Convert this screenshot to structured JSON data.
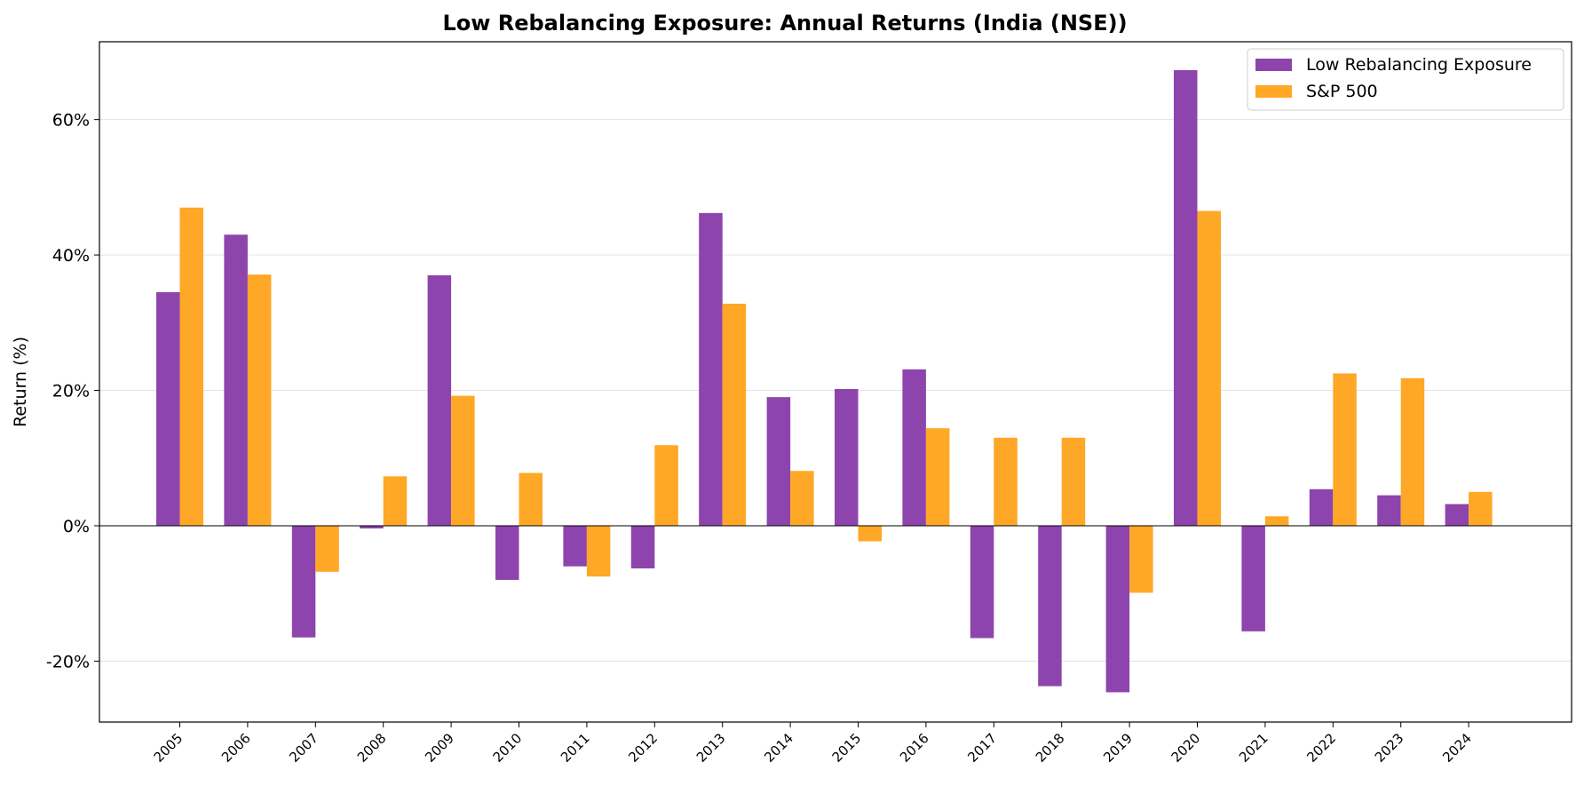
{
  "chart_data": {
    "type": "bar",
    "title": "Low Rebalancing Exposure: Annual Returns (India (NSE))",
    "xlabel": "",
    "ylabel": "Return (%)",
    "ylim": [
      -29,
      71.5
    ],
    "yticks": [
      -20,
      0,
      20,
      40,
      60
    ],
    "ytick_labels": [
      "-20%",
      "0%",
      "20%",
      "40%",
      "60%"
    ],
    "grid": true,
    "legend_position": "top-right",
    "categories": [
      "2005",
      "2006",
      "2007",
      "2008",
      "2009",
      "2010",
      "2011",
      "2012",
      "2013",
      "2014",
      "2015",
      "2016",
      "2017",
      "2018",
      "2019",
      "2020",
      "2021",
      "2022",
      "2023",
      "2024"
    ],
    "series": [
      {
        "name": "Low Rebalancing Exposure",
        "color": "#8e44ad",
        "values": [
          34.5,
          43.0,
          -16.5,
          -0.4,
          37.0,
          -8.0,
          -6.0,
          -6.3,
          46.2,
          19.0,
          20.2,
          23.1,
          -16.6,
          -23.7,
          -24.6,
          67.3,
          -15.6,
          5.4,
          4.5,
          3.2
        ]
      },
      {
        "name": "S&P 500",
        "color": "#ffa726",
        "values": [
          47.0,
          37.1,
          -6.8,
          7.3,
          19.2,
          7.8,
          -7.5,
          11.9,
          32.8,
          8.1,
          -2.3,
          14.4,
          13.0,
          13.0,
          -9.9,
          46.5,
          1.4,
          22.5,
          21.8,
          5.0
        ]
      }
    ]
  }
}
